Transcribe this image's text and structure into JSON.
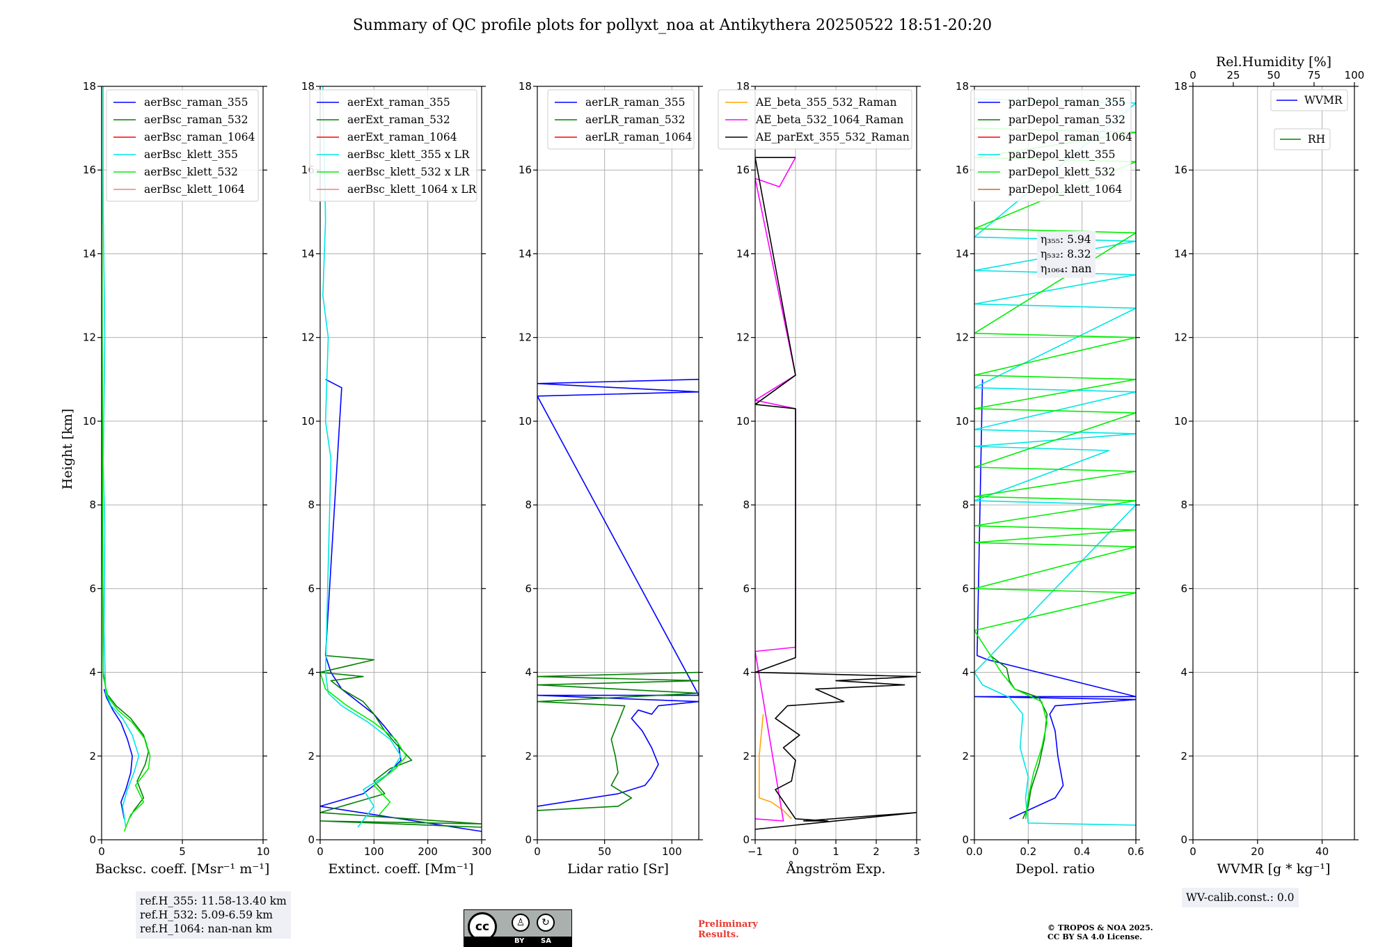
{
  "title": "Summary of QC profile plots for pollyxt_noa at Antikythera 20250522 18:51-20:20",
  "ylabel": "Height [km]",
  "notes": {
    "ref_heights": [
      "ref.H_355: 11.58-13.40 km",
      "ref.H_532: 5.09-6.59 km",
      "ref.H_1064: nan-nan km"
    ],
    "wv_calib": "WV-calib.const.: 0.0",
    "eta": [
      "η₃₅₅: 5.94",
      "η₅₃₂: 8.32",
      "η₁₀₆₄: nan"
    ],
    "preliminary": [
      "Preliminary",
      "Results."
    ],
    "copyright": [
      "© TROPOS & NOA 2025.",
      "CC BY SA 4.0 License."
    ],
    "license_badge": {
      "cc": "cc",
      "by": "BY",
      "sa": "SA"
    }
  },
  "chart_data": [
    {
      "type": "line",
      "id": "backscatter",
      "xlabel": "Backsc. coeff. [Msr⁻¹ m⁻¹]",
      "xlim": [
        0,
        10
      ],
      "ylim": [
        0,
        18
      ],
      "xticks": [
        0,
        5,
        10
      ],
      "yticks": [
        0,
        2,
        4,
        6,
        8,
        10,
        12,
        14,
        16,
        18
      ],
      "grid": true,
      "legend": "top-right",
      "series": [
        {
          "name": "aerBsc_raman_355",
          "color": "#0000ff",
          "x": [
            1.4,
            1.2,
            1.5,
            1.8,
            1.9,
            1.6,
            1.2,
            0.7,
            0.3,
            0.15
          ],
          "y": [
            0.5,
            0.9,
            1.2,
            1.6,
            2.0,
            2.4,
            2.8,
            3.1,
            3.4,
            3.6
          ]
        },
        {
          "name": "aerBsc_raman_532",
          "color": "#008000",
          "x": [
            1.7,
            2.0,
            2.6,
            2.2,
            2.7,
            2.9,
            2.6,
            1.8,
            0.9,
            0.3,
            0.1,
            0.05,
            0.0
          ],
          "y": [
            0.5,
            0.7,
            1.0,
            1.4,
            1.8,
            2.1,
            2.5,
            2.9,
            3.2,
            3.5,
            4.0,
            8.0,
            18.0
          ]
        },
        {
          "name": "aerBsc_raman_1064",
          "color": "#ff0000",
          "x": [],
          "y": []
        },
        {
          "name": "aerBsc_klett_355",
          "color": "#00e5e5",
          "x": [
            1.5,
            1.3,
            1.6,
            2.0,
            2.3,
            1.9,
            1.3,
            0.6,
            0.25,
            0.15,
            0.2,
            0.1,
            0.2,
            0.1,
            0.1
          ],
          "y": [
            0.3,
            0.8,
            1.2,
            1.6,
            2.0,
            2.5,
            2.9,
            3.2,
            3.5,
            5.0,
            7.5,
            9.0,
            12.0,
            15.0,
            18.0
          ]
        },
        {
          "name": "aerBsc_klett_532",
          "color": "#00ee00",
          "x": [
            1.4,
            1.8,
            2.6,
            2.1,
            2.9,
            3.0,
            2.7,
            1.9,
            1.0,
            0.4,
            0.1,
            0.05,
            0.0
          ],
          "y": [
            0.2,
            0.6,
            0.9,
            1.3,
            1.7,
            2.0,
            2.4,
            2.8,
            3.1,
            3.4,
            3.9,
            9.0,
            18.0
          ]
        },
        {
          "name": "aerBsc_klett_1064",
          "color": "#f08080",
          "x": [],
          "y": []
        }
      ]
    },
    {
      "type": "line",
      "id": "extinction",
      "xlabel": "Extinct. coeff. [Mm⁻¹]",
      "xlim": [
        0,
        300
      ],
      "ylim": [
        0,
        18
      ],
      "xticks": [
        0,
        100,
        200,
        300
      ],
      "yticks": [
        0,
        2,
        4,
        6,
        8,
        10,
        12,
        14,
        16,
        18
      ],
      "grid": true,
      "legend": "top-right",
      "series": [
        {
          "name": "aerExt_raman_355",
          "color": "#0000ff",
          "x": [
            300,
            0,
            80,
            120,
            150,
            145,
            120,
            100,
            70,
            40,
            20,
            10,
            40,
            10
          ],
          "y": [
            0.2,
            0.8,
            1.1,
            1.5,
            1.9,
            2.3,
            2.7,
            3.0,
            3.3,
            3.6,
            4.0,
            4.4,
            10.8,
            11.0
          ]
        },
        {
          "name": "aerExt_raman_532",
          "color": "#008000",
          "x": [
            300,
            0,
            300,
            0,
            120,
            100,
            130,
            170,
            140,
            120,
            100,
            80,
            40,
            20,
            80,
            0,
            100,
            10
          ],
          "y": [
            0.3,
            0.45,
            0.38,
            0.65,
            1.1,
            1.4,
            1.7,
            1.9,
            2.3,
            2.6,
            3.0,
            3.3,
            3.6,
            3.8,
            3.9,
            4.0,
            4.3,
            4.4
          ]
        },
        {
          "name": "aerExt_raman_1064",
          "color": "#ff0000",
          "x": [],
          "y": []
        },
        {
          "name": "aerBsc_klett_355 x LR",
          "color": "#00e5e5",
          "x": [
            70,
            100,
            80,
            130,
            150,
            130,
            90,
            40,
            15,
            10,
            20,
            10,
            15,
            5,
            10,
            5
          ],
          "y": [
            0.3,
            0.8,
            1.2,
            1.6,
            2.0,
            2.4,
            2.8,
            3.2,
            3.5,
            4.0,
            9.1,
            10.0,
            12.0,
            13.0,
            14.8,
            18.0
          ]
        },
        {
          "name": "aerBsc_klett_532 x LR",
          "color": "#00ee00",
          "x": [
            110,
            130,
            100,
            140,
            160,
            140,
            100,
            50,
            10,
            0
          ],
          "y": [
            0.6,
            0.9,
            1.3,
            1.7,
            2.0,
            2.4,
            2.8,
            3.2,
            3.6,
            4.0
          ]
        },
        {
          "name": "aerBsc_klett_1064 x LR",
          "color": "#f08080",
          "x": [],
          "y": []
        }
      ]
    },
    {
      "type": "line",
      "id": "lidar_ratio",
      "xlabel": "Lidar ratio [Sr]",
      "xlim": [
        0,
        120
      ],
      "ylim": [
        0,
        18
      ],
      "xticks": [
        0,
        50,
        100
      ],
      "yticks": [
        0,
        2,
        4,
        6,
        8,
        10,
        12,
        14,
        16,
        18
      ],
      "grid": true,
      "legend": "top-right",
      "series": [
        {
          "name": "aerLR_raman_355",
          "color": "#0000ff",
          "x": [
            0,
            60,
            80,
            85,
            90,
            85,
            78,
            70,
            75,
            85,
            90,
            120,
            0,
            120,
            0,
            120,
            0,
            120
          ],
          "y": [
            0.8,
            1.1,
            1.3,
            1.5,
            1.8,
            2.2,
            2.6,
            2.9,
            3.1,
            3.0,
            3.2,
            3.3,
            3.45,
            3.45,
            10.6,
            10.7,
            10.9,
            11.0
          ]
        },
        {
          "name": "aerLR_raman_532",
          "color": "#008000",
          "x": [
            0,
            60,
            70,
            55,
            60,
            58,
            55,
            60,
            65,
            0,
            120,
            0,
            120,
            0,
            120
          ],
          "y": [
            0.7,
            0.8,
            1.0,
            1.3,
            1.6,
            2.0,
            2.4,
            2.8,
            3.2,
            3.3,
            3.5,
            3.7,
            3.8,
            3.9,
            4.0
          ]
        },
        {
          "name": "aerLR_raman_1064",
          "color": "#ff0000",
          "x": [],
          "y": []
        }
      ]
    },
    {
      "type": "line",
      "id": "angstrom",
      "xlabel": "Ångström Exp.",
      "xlim": [
        -1,
        3
      ],
      "ylim": [
        0,
        18
      ],
      "xticks": [
        -1,
        0,
        1,
        2,
        3
      ],
      "yticks": [
        0,
        2,
        4,
        6,
        8,
        10,
        12,
        14,
        16,
        18
      ],
      "grid": true,
      "legend": "top-right",
      "series": [
        {
          "name": "AE_beta_355_532_Raman",
          "color": "#ffa500",
          "x": [
            -0.1,
            -0.3,
            -0.6,
            -0.9,
            -0.9,
            -0.8
          ],
          "y": [
            0.5,
            0.7,
            0.9,
            1.0,
            2.0,
            3.0
          ]
        },
        {
          "name": "AE_beta_532_1064_Raman",
          "color": "#ff00ff",
          "x": [
            -1,
            -0.3,
            -1,
            0.0,
            0.0,
            -1,
            0.0,
            -1,
            -0.4,
            0.0
          ],
          "y": [
            0.5,
            0.45,
            4.5,
            4.6,
            10.3,
            10.5,
            11.1,
            15.8,
            15.6,
            16.3
          ]
        },
        {
          "name": "AE_parExt_355_532_Raman",
          "color": "#000000",
          "x": [
            -1,
            3,
            0.2,
            0.8,
            0.0,
            -0.5,
            -0.1,
            0.0,
            -0.3,
            0.1,
            -0.5,
            -0.2,
            1.2,
            0.5,
            2.7,
            1.0,
            3.0,
            -1,
            0.0,
            0.0,
            -1,
            0.0,
            -1,
            0.0
          ],
          "y": [
            0.25,
            0.65,
            0.45,
            0.45,
            0.5,
            1.2,
            1.4,
            1.9,
            2.2,
            2.5,
            2.9,
            3.2,
            3.3,
            3.6,
            3.7,
            3.8,
            3.9,
            4.0,
            4.35,
            10.3,
            10.4,
            11.1,
            16.3,
            16.3
          ]
        }
      ]
    },
    {
      "type": "line",
      "id": "depolarization",
      "xlabel": "Depol. ratio",
      "xlim": [
        0,
        0.6
      ],
      "ylim": [
        0,
        18
      ],
      "xticks": [
        0.0,
        0.2,
        0.4,
        0.6
      ],
      "yticks": [
        0,
        2,
        4,
        6,
        8,
        10,
        12,
        14,
        16,
        18
      ],
      "grid": true,
      "legend": "top-right",
      "series": [
        {
          "name": "parDepol_raman_355",
          "color": "#0000ff",
          "x": [
            0.13,
            0.3,
            0.33,
            0.31,
            0.3,
            0.28,
            0.3,
            0.6,
            0.0,
            0.6,
            0.05,
            0.01,
            0.03
          ],
          "y": [
            0.5,
            1.0,
            1.3,
            2.0,
            2.6,
            3.0,
            3.2,
            3.35,
            3.42,
            3.42,
            4.3,
            4.4,
            11.0
          ]
        },
        {
          "name": "parDepol_raman_532",
          "color": "#008000",
          "x": [
            0.18,
            0.2,
            0.21,
            0.24,
            0.26,
            0.27,
            0.24,
            0.15,
            0.13,
            0.12,
            0.06
          ],
          "y": [
            0.5,
            0.8,
            1.2,
            1.8,
            2.4,
            3.0,
            3.4,
            3.6,
            3.8,
            4.1,
            4.4
          ]
        },
        {
          "name": "parDepol_raman_1064",
          "color": "#ff0000",
          "x": [],
          "y": []
        },
        {
          "name": "parDepol_klett_355",
          "color": "#00e5e5",
          "x": [
            0.6,
            0.2,
            0.19,
            0.2,
            0.17,
            0.18,
            0.13,
            0.03,
            0.0,
            0.6,
            0.0,
            0.5,
            0.0,
            0.6,
            0.0,
            0.6,
            0.0,
            0.6,
            0.0,
            0.6,
            0.0,
            0.6,
            0.0,
            0.6,
            0.0
          ],
          "y": [
            0.35,
            0.4,
            1.0,
            1.5,
            2.2,
            3.0,
            3.4,
            3.7,
            4.0,
            8.0,
            8.1,
            9.3,
            9.4,
            9.7,
            9.8,
            10.7,
            10.8,
            12.7,
            12.8,
            13.5,
            13.6,
            14.3,
            14.4,
            17.6,
            17.7
          ]
        },
        {
          "name": "parDepol_klett_532",
          "color": "#00ee00",
          "x": [
            0.19,
            0.2,
            0.22,
            0.25,
            0.27,
            0.25,
            0.15,
            0.1,
            0.0,
            0.6,
            0.0,
            0.6,
            0.0,
            0.6,
            0.0,
            0.6,
            0.0,
            0.6,
            0.0,
            0.6,
            0.0,
            0.6,
            0.0,
            0.6,
            0.0,
            0.6,
            0.0,
            0.6,
            0.0,
            0.6,
            0.0
          ],
          "y": [
            0.5,
            1.0,
            1.6,
            2.2,
            2.8,
            3.3,
            3.6,
            4.0,
            5.0,
            5.9,
            6.0,
            7.0,
            7.1,
            7.4,
            7.5,
            8.1,
            8.2,
            8.8,
            8.9,
            10.2,
            10.3,
            11.0,
            11.1,
            12.0,
            12.1,
            14.5,
            14.6,
            16.2,
            16.3,
            16.9,
            17.0
          ]
        },
        {
          "name": "parDepol_klett_1064",
          "color": "#d2691e",
          "x": [],
          "y": []
        }
      ]
    },
    {
      "type": "line",
      "id": "water_vapor",
      "xlabel": "WVMR [g * kg⁻¹]",
      "x2label": "Rel.Humidity [%]",
      "xlim": [
        0,
        50
      ],
      "x2lim": [
        0,
        100
      ],
      "ylim": [
        0,
        18
      ],
      "xticks": [
        0,
        20,
        40
      ],
      "x2ticks": [
        0,
        25,
        50,
        75,
        100
      ],
      "yticks": [
        0,
        2,
        4,
        6,
        8,
        10,
        12,
        14,
        16,
        18
      ],
      "grid": true,
      "legend": "top-right",
      "series": [
        {
          "name": "WVMR",
          "color": "#0000ff",
          "x": [],
          "y": []
        },
        {
          "name": "RH",
          "color": "#008000",
          "x": [],
          "y": []
        }
      ]
    }
  ]
}
